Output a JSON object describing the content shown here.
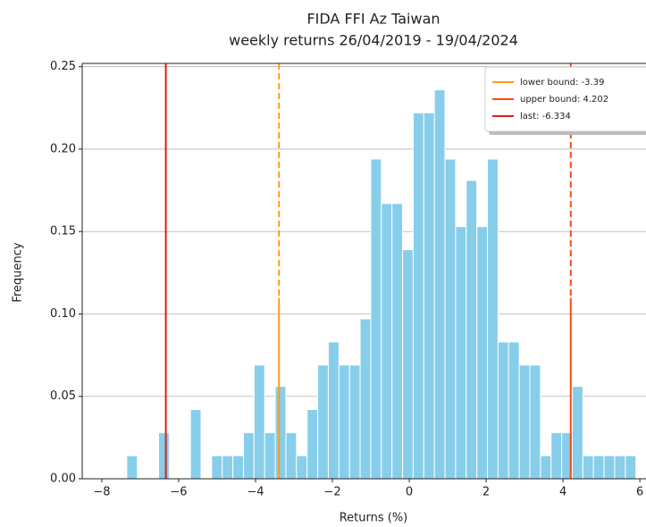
{
  "chart_data": {
    "type": "histogram",
    "title": "FIDA FFI Az Taiwan",
    "subtitle": "weekly returns 26/04/2019 - 19/04/2024",
    "x_label": "Returns (%)",
    "y_label": "Frequency",
    "color": "#87ceeb",
    "grid": "y",
    "legend": "upper right",
    "bins": [
      -7.35,
      -7.074,
      -6.798,
      -6.522,
      -6.246,
      -5.97,
      -5.694,
      -5.418,
      -5.142,
      -4.866,
      -4.59,
      -4.314,
      -4.038,
      -3.762,
      -3.486,
      -3.21,
      -2.934,
      -2.658,
      -2.382,
      -2.106,
      -1.83,
      -1.554,
      -1.278,
      -1.002,
      -0.726,
      -0.45,
      -0.174,
      0.102,
      0.378,
      0.654,
      0.93,
      1.206,
      1.482,
      1.758,
      2.034,
      2.31,
      2.586,
      2.862,
      3.138,
      3.414,
      3.69,
      3.966,
      4.242,
      4.518,
      4.794,
      5.07,
      5.346,
      5.622,
      5.898
    ],
    "values": [
      0.014,
      0,
      0,
      0.028,
      0,
      0,
      0.042,
      0,
      0.014,
      0.014,
      0.014,
      0.028,
      0.069,
      0.028,
      0.056,
      0.028,
      0.014,
      0.042,
      0.069,
      0.083,
      0.069,
      0.069,
      0.097,
      0.194,
      0.167,
      0.167,
      0.139,
      0.222,
      0.222,
      0.236,
      0.194,
      0.153,
      0.181,
      0.153,
      0.194,
      0.083,
      0.083,
      0.069,
      0.069,
      0.014,
      0.028,
      0.028,
      0.056,
      0.014,
      0.014,
      0.014,
      0.014,
      0.014
    ],
    "vlines": [
      {
        "label": "lower bound: -3.39",
        "value": -3.39,
        "color": "#ff9b1a"
      },
      {
        "label": "upper bound: 4.202",
        "value": 4.202,
        "color": "#ff4a12"
      },
      {
        "label": "last: -6.334",
        "value": -6.334,
        "color": "#e41a1a"
      }
    ],
    "xlim": [
      -8.51,
      6.16
    ],
    "ylim": [
      0,
      0.252
    ],
    "xticks": [
      {
        "value": -8,
        "label": "−8"
      },
      {
        "value": -6,
        "label": "−6"
      },
      {
        "value": -4,
        "label": "−4"
      },
      {
        "value": -2,
        "label": "−2"
      },
      0,
      2,
      4,
      6
    ],
    "yticks": [
      {
        "value": 0,
        "label": "0.00"
      },
      {
        "value": 0.05,
        "label": "0.05"
      },
      {
        "value": 0.1,
        "label": "0.10"
      },
      {
        "value": 0.15,
        "label": "0.15"
      },
      {
        "value": 0.2,
        "label": "0.20"
      },
      {
        "value": 0.25,
        "label": "0.25"
      }
    ]
  }
}
